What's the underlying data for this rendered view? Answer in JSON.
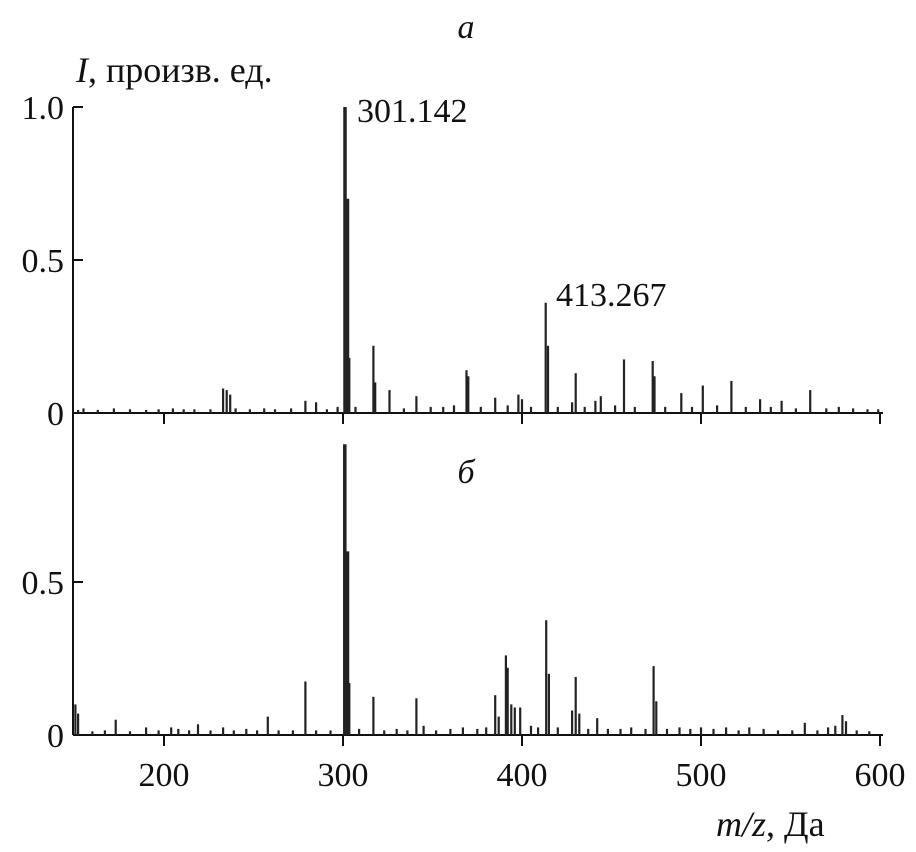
{
  "chart_data": {
    "type": "bar",
    "x_axis": {
      "label_var": "m/z",
      "label_unit": ", Да",
      "range": [
        150,
        600
      ],
      "ticks": [
        200,
        300,
        400,
        500,
        600
      ]
    },
    "y_axis": {
      "label_var": "I",
      "label_unit": ", произв. ед."
    },
    "panels": [
      {
        "id": "a",
        "label": "а",
        "ylim": [
          0,
          1.0
        ],
        "yticks": [
          0,
          0.5,
          1.0
        ],
        "ytick_labels": [
          "0",
          "0.5",
          "1.0"
        ],
        "annotations": [
          {
            "text": "301.142",
            "x": 301.142,
            "y": 1.0
          },
          {
            "text": "413.267",
            "x": 413.267,
            "y": 0.36
          }
        ],
        "peaks": [
          [
            152,
            0.01
          ],
          [
            155,
            0.015
          ],
          [
            163,
            0.01
          ],
          [
            172,
            0.015
          ],
          [
            181,
            0.012
          ],
          [
            190,
            0.01
          ],
          [
            197,
            0.012
          ],
          [
            205,
            0.015
          ],
          [
            211,
            0.012
          ],
          [
            217,
            0.012
          ],
          [
            226,
            0.012
          ],
          [
            233,
            0.08
          ],
          [
            235,
            0.075
          ],
          [
            237,
            0.06
          ],
          [
            240,
            0.015
          ],
          [
            248,
            0.012
          ],
          [
            256,
            0.015
          ],
          [
            262,
            0.012
          ],
          [
            271,
            0.015
          ],
          [
            279,
            0.04
          ],
          [
            285,
            0.035
          ],
          [
            291,
            0.012
          ],
          [
            297,
            0.02
          ],
          [
            301.142,
            1.0
          ],
          [
            302.5,
            0.7
          ],
          [
            303.5,
            0.18
          ],
          [
            307,
            0.02
          ],
          [
            317,
            0.22
          ],
          [
            318,
            0.1
          ],
          [
            326,
            0.075
          ],
          [
            334,
            0.015
          ],
          [
            341,
            0.055
          ],
          [
            349,
            0.02
          ],
          [
            356,
            0.02
          ],
          [
            362,
            0.025
          ],
          [
            369,
            0.14
          ],
          [
            370,
            0.12
          ],
          [
            377,
            0.02
          ],
          [
            385,
            0.05
          ],
          [
            392,
            0.025
          ],
          [
            398,
            0.06
          ],
          [
            400,
            0.045
          ],
          [
            405,
            0.02
          ],
          [
            413.267,
            0.36
          ],
          [
            414.5,
            0.22
          ],
          [
            420,
            0.02
          ],
          [
            428,
            0.035
          ],
          [
            430,
            0.13
          ],
          [
            435,
            0.02
          ],
          [
            441,
            0.04
          ],
          [
            444,
            0.055
          ],
          [
            452,
            0.025
          ],
          [
            457,
            0.175
          ],
          [
            463,
            0.02
          ],
          [
            473,
            0.17
          ],
          [
            474,
            0.12
          ],
          [
            480,
            0.02
          ],
          [
            489,
            0.065
          ],
          [
            495,
            0.02
          ],
          [
            501,
            0.09
          ],
          [
            509,
            0.025
          ],
          [
            517,
            0.105
          ],
          [
            525,
            0.02
          ],
          [
            533,
            0.045
          ],
          [
            539,
            0.02
          ],
          [
            545,
            0.04
          ],
          [
            553,
            0.015
          ],
          [
            561,
            0.075
          ],
          [
            570,
            0.015
          ],
          [
            577,
            0.02
          ],
          [
            585,
            0.015
          ],
          [
            593,
            0.012
          ],
          [
            599,
            0.012
          ]
        ]
      },
      {
        "id": "b",
        "label": "б",
        "ylim": [
          0,
          0.95
        ],
        "yticks": [
          0,
          0.5
        ],
        "ytick_labels": [
          "0",
          "0.5"
        ],
        "annotations": [],
        "peaks": [
          [
            150.5,
            0.1
          ],
          [
            152,
            0.07
          ],
          [
            160,
            0.012
          ],
          [
            167,
            0.015
          ],
          [
            173,
            0.05
          ],
          [
            181,
            0.012
          ],
          [
            190,
            0.025
          ],
          [
            197,
            0.015
          ],
          [
            204,
            0.025
          ],
          [
            208,
            0.02
          ],
          [
            214,
            0.015
          ],
          [
            219,
            0.035
          ],
          [
            226,
            0.015
          ],
          [
            233,
            0.025
          ],
          [
            239,
            0.015
          ],
          [
            246,
            0.02
          ],
          [
            252,
            0.015
          ],
          [
            258,
            0.06
          ],
          [
            264,
            0.015
          ],
          [
            272,
            0.015
          ],
          [
            279,
            0.175
          ],
          [
            285,
            0.015
          ],
          [
            293,
            0.015
          ],
          [
            301,
            0.95
          ],
          [
            302.5,
            0.6
          ],
          [
            303.5,
            0.17
          ],
          [
            309,
            0.02
          ],
          [
            317,
            0.125
          ],
          [
            323,
            0.015
          ],
          [
            330,
            0.02
          ],
          [
            336,
            0.015
          ],
          [
            341,
            0.12
          ],
          [
            345,
            0.03
          ],
          [
            352,
            0.015
          ],
          [
            360,
            0.02
          ],
          [
            367,
            0.025
          ],
          [
            375,
            0.02
          ],
          [
            380,
            0.025
          ],
          [
            385,
            0.13
          ],
          [
            387,
            0.06
          ],
          [
            391,
            0.26
          ],
          [
            392,
            0.22
          ],
          [
            394,
            0.1
          ],
          [
            396,
            0.09
          ],
          [
            399,
            0.09
          ],
          [
            405,
            0.03
          ],
          [
            409,
            0.025
          ],
          [
            413.5,
            0.375
          ],
          [
            415,
            0.2
          ],
          [
            420,
            0.025
          ],
          [
            428,
            0.08
          ],
          [
            430,
            0.19
          ],
          [
            432,
            0.07
          ],
          [
            437,
            0.02
          ],
          [
            442,
            0.055
          ],
          [
            448,
            0.02
          ],
          [
            455,
            0.02
          ],
          [
            461,
            0.025
          ],
          [
            469,
            0.02
          ],
          [
            473.5,
            0.225
          ],
          [
            475,
            0.11
          ],
          [
            481,
            0.02
          ],
          [
            488,
            0.025
          ],
          [
            494,
            0.02
          ],
          [
            500,
            0.025
          ],
          [
            507,
            0.02
          ],
          [
            514,
            0.025
          ],
          [
            521,
            0.015
          ],
          [
            527,
            0.025
          ],
          [
            535,
            0.02
          ],
          [
            543,
            0.015
          ],
          [
            551,
            0.015
          ],
          [
            558,
            0.04
          ],
          [
            565,
            0.015
          ],
          [
            571,
            0.025
          ],
          [
            575,
            0.03
          ],
          [
            579,
            0.065
          ],
          [
            581,
            0.045
          ],
          [
            587,
            0.015
          ],
          [
            594,
            0.012
          ]
        ]
      }
    ]
  }
}
